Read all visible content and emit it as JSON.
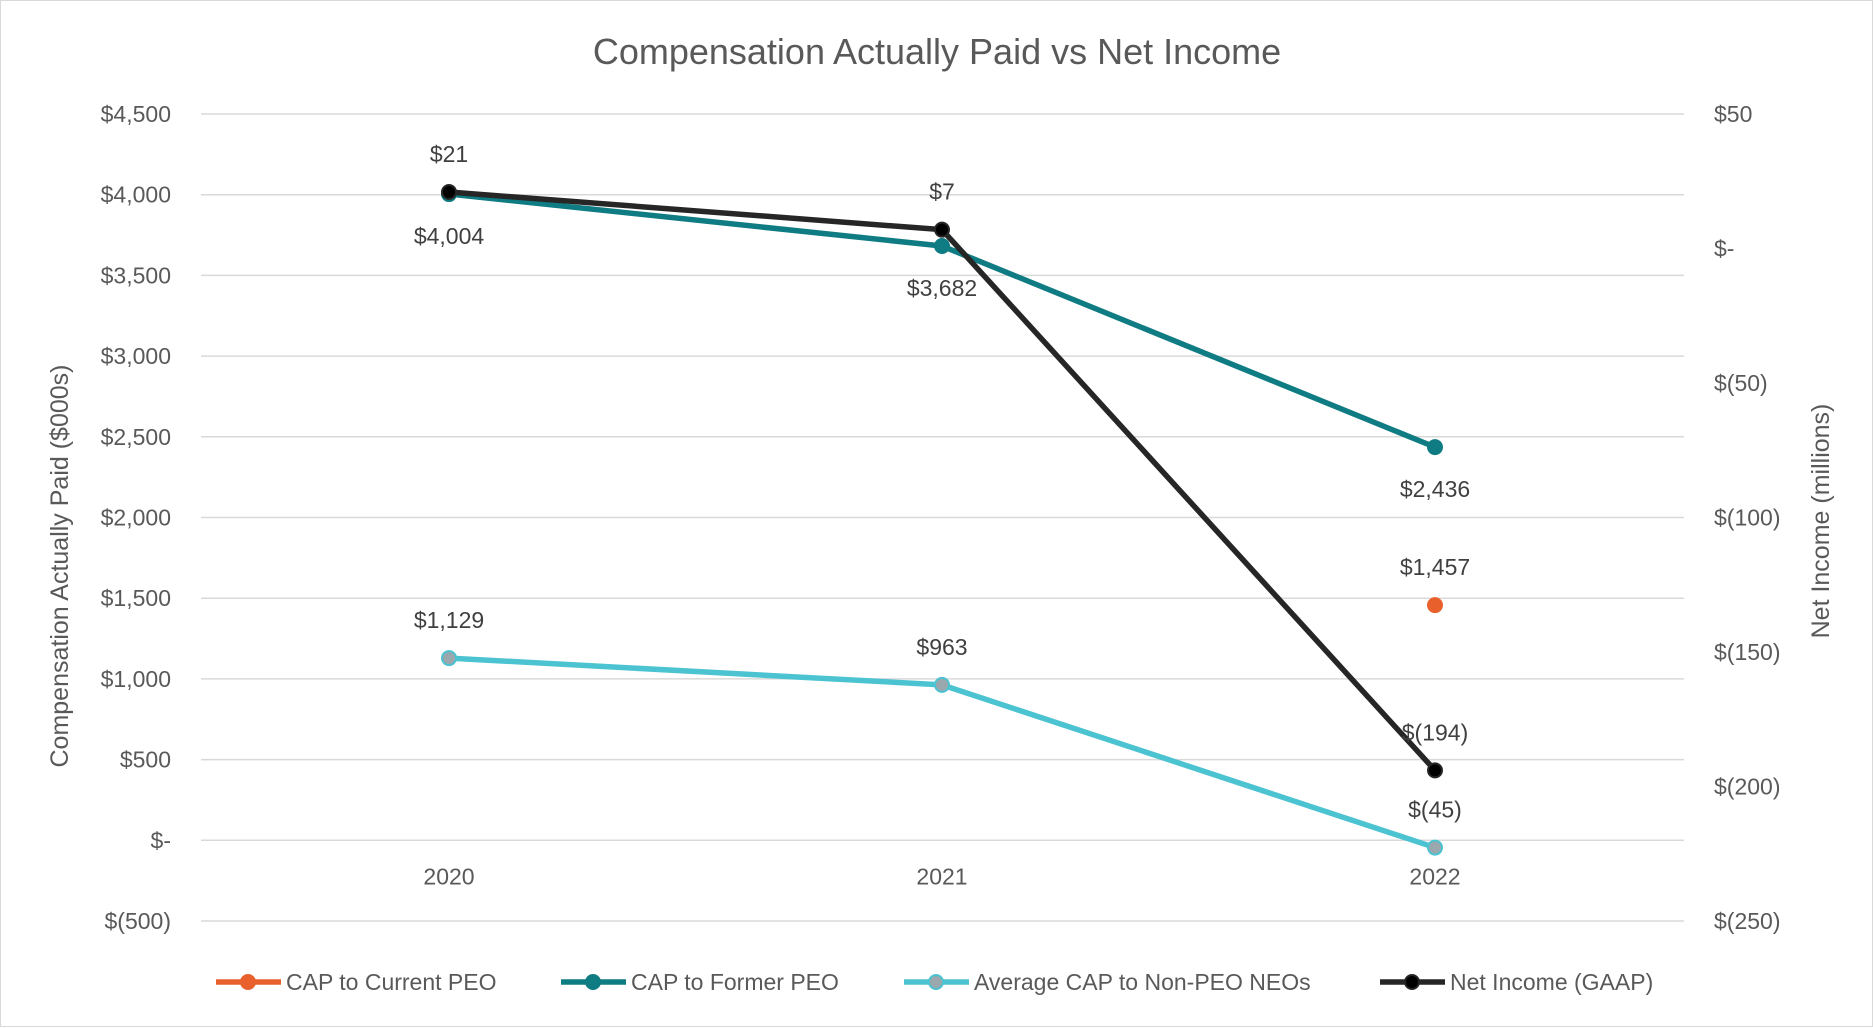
{
  "chart_data": {
    "type": "line",
    "title": "Compensation Actually Paid vs Net Income",
    "categories": [
      "2020",
      "2021",
      "2022"
    ],
    "y_left": {
      "label": "Compensation Actually Paid ($000s)",
      "range": [
        -500,
        4500
      ],
      "step": 500,
      "tick_labels": [
        "$(500)",
        "$-",
        "$500",
        "$1,000",
        "$1,500",
        "$2,000",
        "$2,500",
        "$3,000",
        "$3,500",
        "$4,000",
        "$4,500"
      ]
    },
    "y_right": {
      "label": "Net Income (millions)",
      "range": [
        -250,
        50
      ],
      "step": 50,
      "tick_labels": [
        "$(250)",
        "$(200)",
        "$(150)",
        "$(100)",
        "$(50)",
        "$-",
        "$50"
      ]
    },
    "grid": true,
    "legend_position": "bottom",
    "series": [
      {
        "name": "CAP to Current PEO",
        "axis": "left",
        "color": "#E8602C",
        "marker_color": "#E8602C",
        "values": [
          null,
          null,
          1457
        ],
        "data_labels": [
          null,
          null,
          "$1,457"
        ],
        "label_placement": [
          "above",
          "above",
          "above"
        ]
      },
      {
        "name": "CAP to Former PEO",
        "axis": "left",
        "color": "#0F7B82",
        "marker_color": "#0F7B82",
        "values": [
          4004,
          3682,
          2436
        ],
        "data_labels": [
          "$4,004",
          "$3,682",
          "$2,436"
        ],
        "label_placement": [
          "below",
          "below",
          "below"
        ]
      },
      {
        "name": "Average CAP to Non-PEO NEOs",
        "axis": "left",
        "color": "#4CC3D1",
        "marker_color": "#9AA7AC",
        "values": [
          1129,
          963,
          -45
        ],
        "data_labels": [
          "$1,129",
          "$963",
          "$(45)"
        ],
        "label_placement": [
          "above",
          "above",
          "above"
        ]
      },
      {
        "name": "Net Income (GAAP)",
        "axis": "right",
        "color": "#262626",
        "marker_color": "#000000",
        "values": [
          21,
          7,
          -194
        ],
        "data_labels": [
          "$21",
          "$7",
          "$(194)"
        ],
        "label_placement": [
          "above",
          "above",
          "above"
        ]
      }
    ]
  }
}
